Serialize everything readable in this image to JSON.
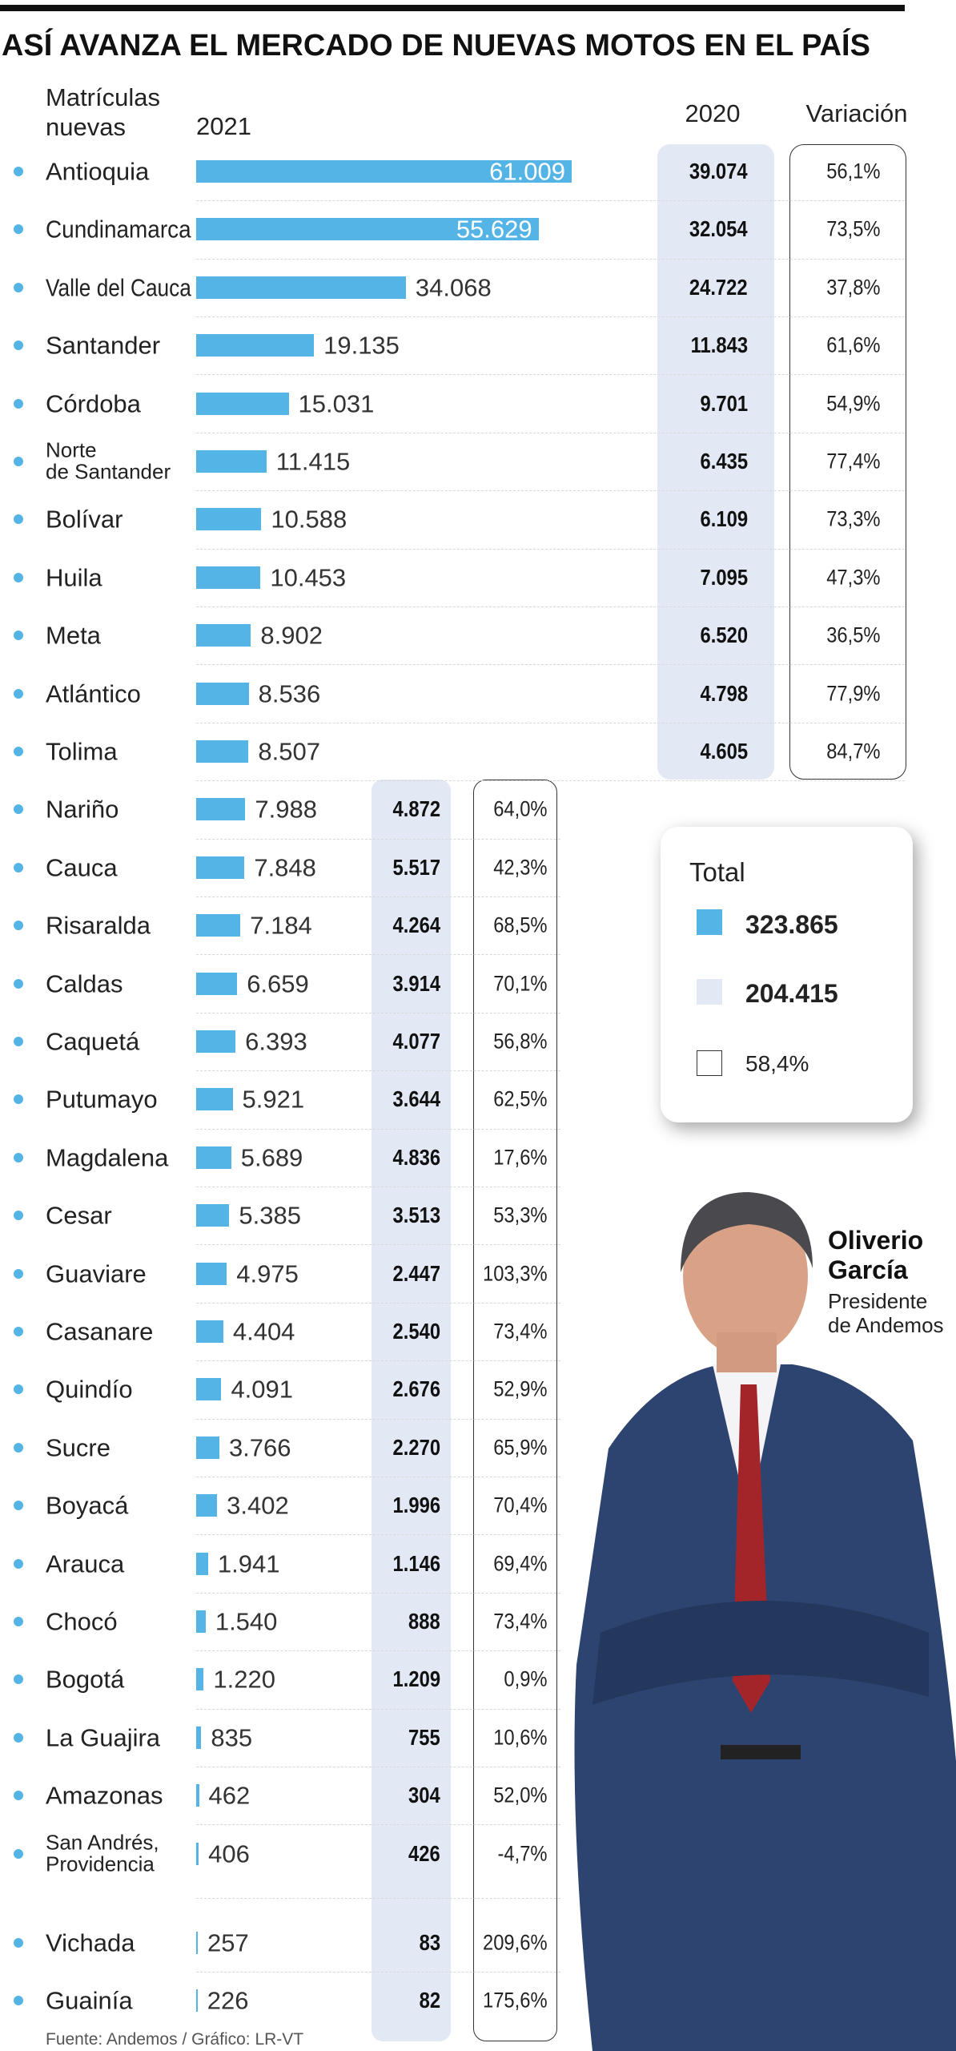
{
  "title": "ASÍ AVANZA EL MERCADO DE NUEVAS MOTOS EN EL PAÍS",
  "chart_data": {
    "type": "bar",
    "orientation": "horizontal",
    "row_header": "Matrículas\nnuevas",
    "categories": [
      "Antioquia",
      "Cundinamarca",
      "Valle del Cauca",
      "Santander",
      "Córdoba",
      "Norte\nde Santander",
      "Bolívar",
      "Huila",
      "Meta",
      "Atlántico",
      "Tolima",
      "Nariño",
      "Cauca",
      "Risaralda",
      "Caldas",
      "Caquetá",
      "Putumayo",
      "Magdalena",
      "Cesar",
      "Guaviare",
      "Casanare",
      "Quindío",
      "Sucre",
      "Boyacá",
      "Arauca",
      "Chocó",
      "Bogotá",
      "La Guajira",
      "Amazonas",
      "San Andrés,\nProvidencia",
      "Vichada",
      "Guainía"
    ],
    "series": [
      {
        "name": "2021",
        "color": "#55b4e6",
        "values": [
          61009,
          55629,
          34068,
          19135,
          15031,
          11415,
          10588,
          10453,
          8902,
          8536,
          8507,
          7988,
          7848,
          7184,
          6659,
          6393,
          5921,
          5689,
          5385,
          4975,
          4404,
          4091,
          3766,
          3402,
          1941,
          1540,
          1220,
          835,
          462,
          406,
          257,
          226
        ],
        "value_labels": [
          "61.009",
          "55.629",
          "34.068",
          "19.135",
          "15.031",
          "11.415",
          "10.588",
          "10.453",
          "8.902",
          "8.536",
          "8.507",
          "7.988",
          "7.848",
          "7.184",
          "6.659",
          "6.393",
          "5.921",
          "5.689",
          "5.385",
          "4.975",
          "4.404",
          "4.091",
          "3.766",
          "3.402",
          "1.941",
          "1.540",
          "1.220",
          "835",
          "462",
          "406",
          "257",
          "226"
        ]
      },
      {
        "name": "2020",
        "color": "#e3e8f5",
        "values": [
          39074,
          32054,
          24722,
          11843,
          9701,
          6435,
          6109,
          7095,
          6520,
          4798,
          4605,
          4872,
          5517,
          4264,
          3914,
          4077,
          3644,
          4836,
          3513,
          2447,
          2540,
          2676,
          2270,
          1996,
          1146,
          888,
          1209,
          755,
          304,
          426,
          83,
          82
        ],
        "value_labels": [
          "39.074",
          "32.054",
          "24.722",
          "11.843",
          "9.701",
          "6.435",
          "6.109",
          "7.095",
          "6.520",
          "4.798",
          "4.605",
          "4.872",
          "5.517",
          "4.264",
          "3.914",
          "4.077",
          "3.644",
          "4.836",
          "3.513",
          "2.447",
          "2.540",
          "2.676",
          "2.270",
          "1.996",
          "1.146",
          "888",
          "1.209",
          "755",
          "304",
          "426",
          "83",
          "82"
        ]
      },
      {
        "name": "Variación",
        "color": "#ffffff",
        "values": [
          56.1,
          73.5,
          37.8,
          61.6,
          54.9,
          77.4,
          73.3,
          47.3,
          36.5,
          77.9,
          84.7,
          64.0,
          42.3,
          68.5,
          70.1,
          56.8,
          62.5,
          17.6,
          53.3,
          103.3,
          73.4,
          52.9,
          65.9,
          70.4,
          69.4,
          73.4,
          0.9,
          10.6,
          52.0,
          -4.7,
          209.6,
          175.6
        ],
        "value_labels": [
          "56,1%",
          "73,5%",
          "37,8%",
          "61,6%",
          "54,9%",
          "77,4%",
          "73,3%",
          "47,3%",
          "36,5%",
          "77,9%",
          "84,7%",
          "64,0%",
          "42,3%",
          "68,5%",
          "70,1%",
          "56,8%",
          "62,5%",
          "17,6%",
          "53,3%",
          "103,3%",
          "73,4%",
          "52,9%",
          "65,9%",
          "70,4%",
          "69,4%",
          "73,4%",
          "0,9%",
          "10,6%",
          "52,0%",
          "-4,7%",
          "209,6%",
          "175,6%"
        ]
      }
    ],
    "totals": {
      "title": "Total",
      "values": [
        323865,
        204415,
        58.4
      ],
      "value_labels": [
        "323.865",
        "204.415",
        "58,4%"
      ]
    }
  },
  "person": {
    "name": "Oliverio García",
    "role": "Presidente de Andemos"
  },
  "source": "Fuente: Andemos / Gráfico: LR-VT"
}
